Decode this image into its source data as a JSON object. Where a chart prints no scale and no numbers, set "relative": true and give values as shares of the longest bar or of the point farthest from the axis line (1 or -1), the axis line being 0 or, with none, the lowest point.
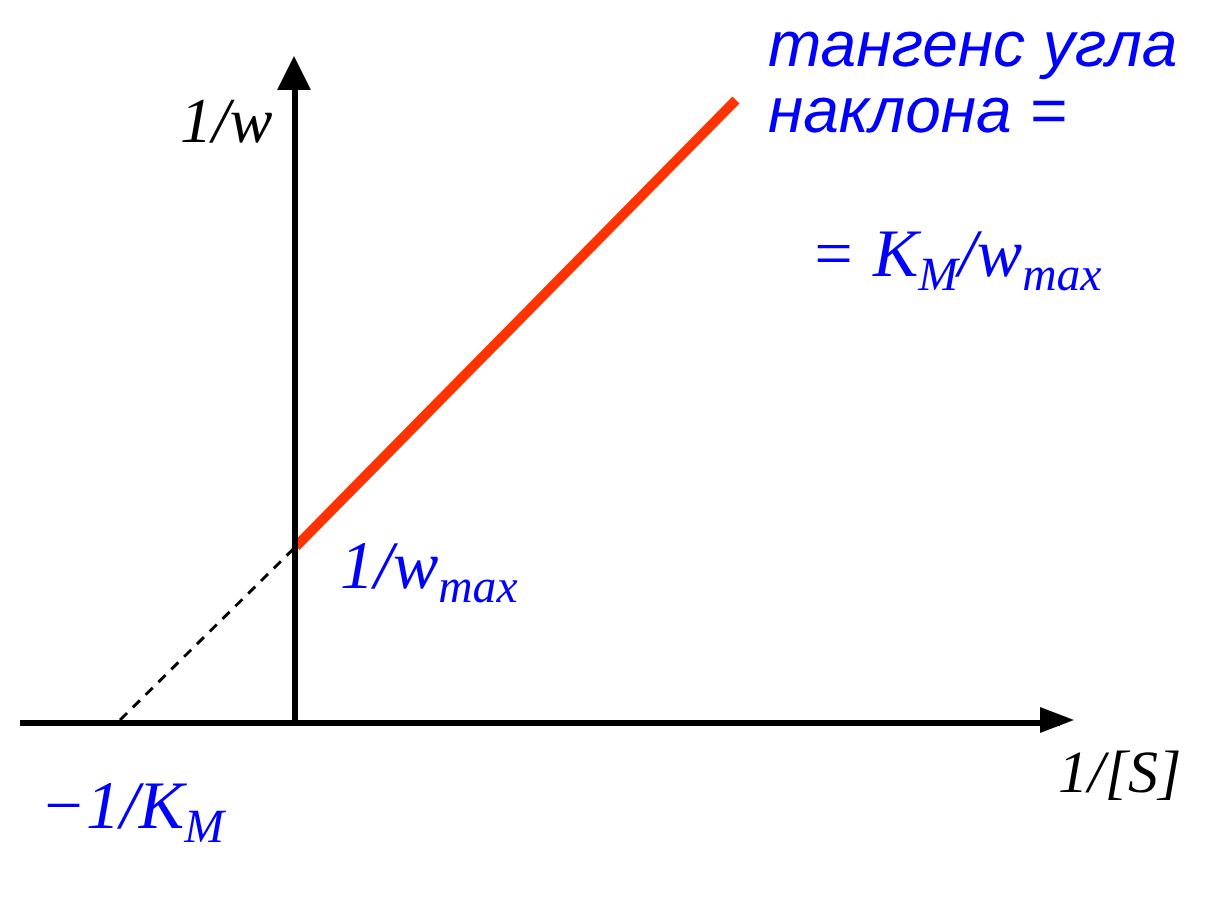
{
  "chart_data": {
    "type": "line",
    "relative": true,
    "xlabel": "1/[S]",
    "ylabel": "1/w",
    "categories": [
      null,
      null,
      null,
      null,
      null,
      null,
      null,
      null
    ],
    "series": [
      {
        "color": "#ff3300",
        "values": [
          null,
          null,
          0.28,
          0.424,
          0.568,
          0.712,
          0.856,
          1
        ]
      },
      {
        "color": "#000000",
        "values": [
          0,
          0.14,
          0.28,
          null,
          null,
          null,
          null,
          null
        ],
        "line_style": "dashed"
      }
    ],
    "annotations": [
      "тангенс угла\nнаклона =",
      "= K$_{M}$/w$_{max}$",
      "1/w$_{max}$",
      {
        "text": "−1/K$_{M}$",
        "y": 0
      }
    ]
  }
}
